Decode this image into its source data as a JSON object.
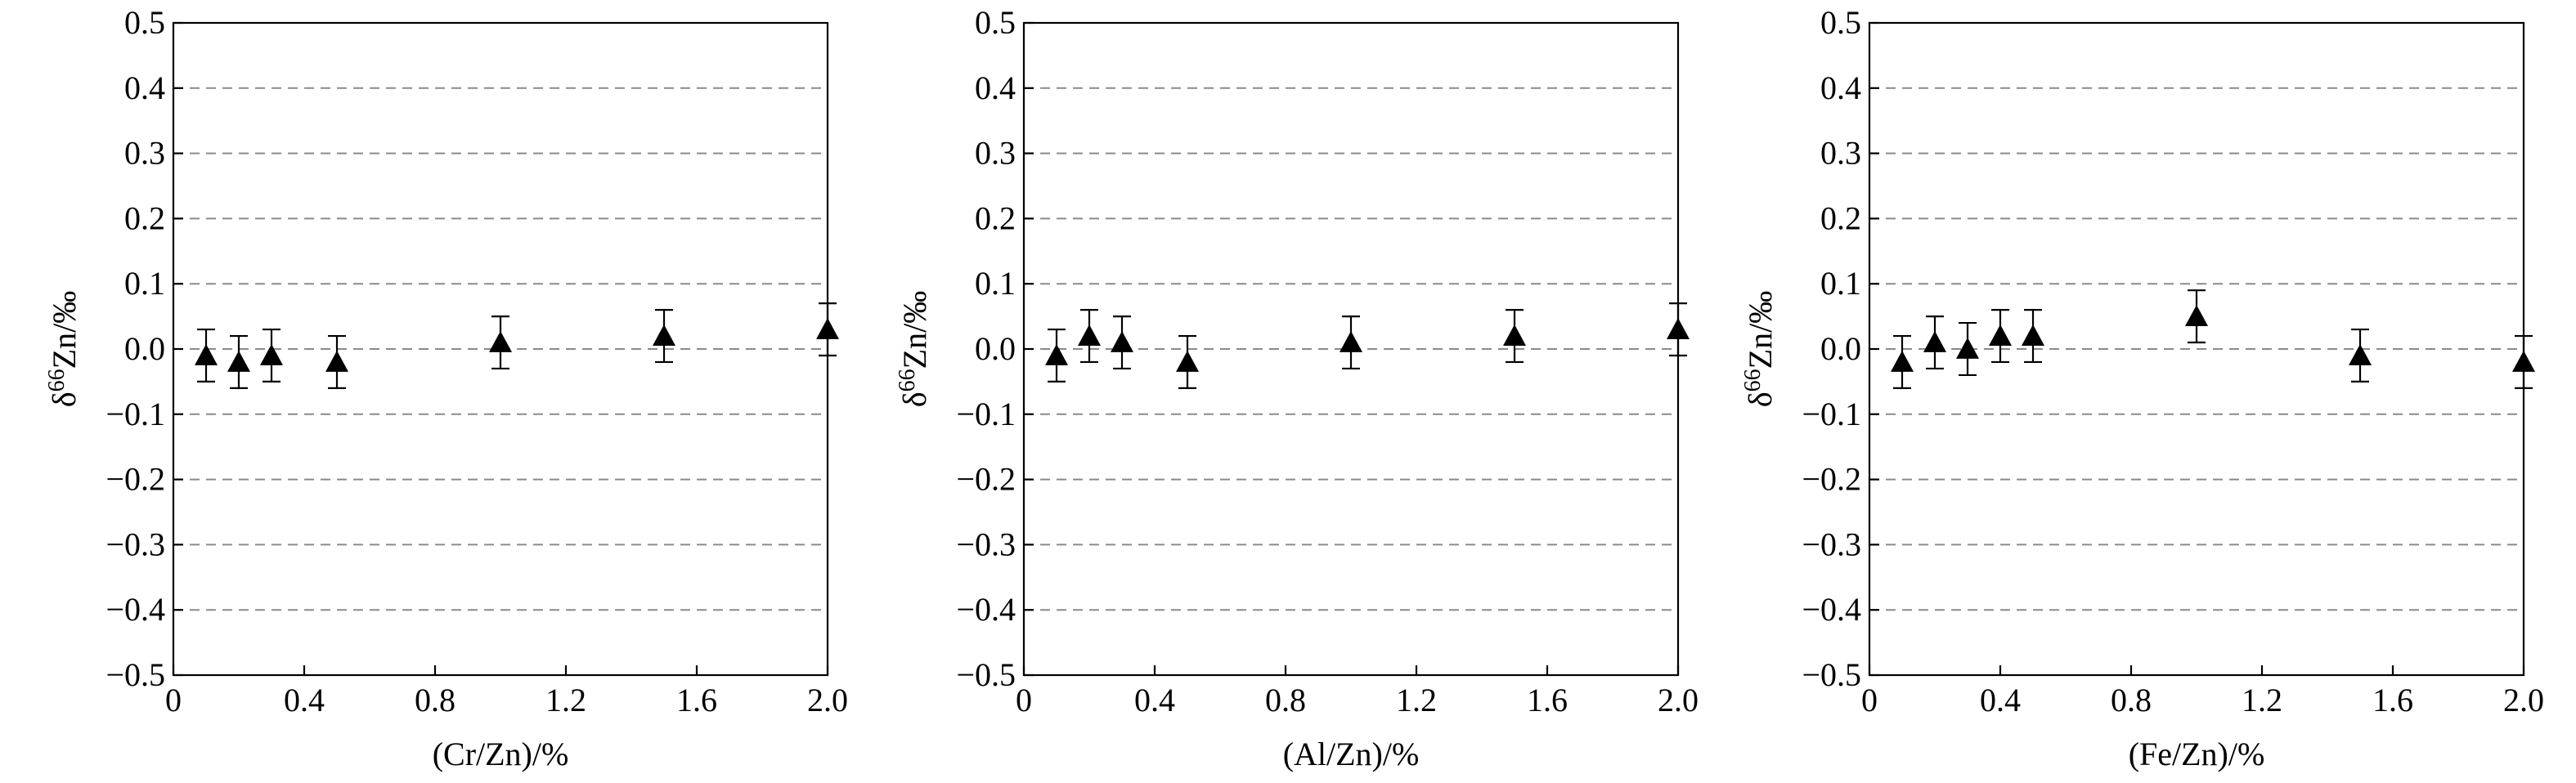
{
  "chart_data": [
    {
      "type": "scatter",
      "xlabel": "(Cr/Zn)/%",
      "ylabel_parts": [
        "δ",
        "66",
        "Zn/‰"
      ],
      "xlim": [
        0,
        2.0
      ],
      "ylim": [
        -0.5,
        0.5
      ],
      "xticks": [
        "0",
        "0.4",
        "0.8",
        "1.2",
        "1.6",
        "2.0"
      ],
      "yticks": [
        "0.5",
        "0.4",
        "0.3",
        "0.2",
        "0.1",
        "0.0",
        "−0.1",
        "−0.2",
        "−0.3",
        "−0.4",
        "−0.5"
      ],
      "grid": "horizontal dashed",
      "marker": "filled triangle",
      "points": [
        {
          "x": 0.1,
          "y": -0.01,
          "err": 0.04
        },
        {
          "x": 0.2,
          "y": -0.02,
          "err": 0.04
        },
        {
          "x": 0.3,
          "y": -0.01,
          "err": 0.04
        },
        {
          "x": 0.5,
          "y": -0.02,
          "err": 0.04
        },
        {
          "x": 1.0,
          "y": 0.01,
          "err": 0.04
        },
        {
          "x": 1.5,
          "y": 0.02,
          "err": 0.04
        },
        {
          "x": 2.0,
          "y": 0.03,
          "err": 0.04
        }
      ]
    },
    {
      "type": "scatter",
      "xlabel": "(Al/Zn)/%",
      "ylabel_parts": [
        "δ",
        "66",
        "Zn/‰"
      ],
      "xlim": [
        0,
        2.0
      ],
      "ylim": [
        -0.5,
        0.5
      ],
      "xticks": [
        "0",
        "0.4",
        "0.8",
        "1.2",
        "1.6",
        "2.0"
      ],
      "yticks": [
        "0.5",
        "0.4",
        "0.3",
        "0.2",
        "0.1",
        "0.0",
        "−0.1",
        "−0.2",
        "−0.3",
        "−0.4",
        "−0.5"
      ],
      "grid": "horizontal dashed",
      "marker": "filled triangle",
      "points": [
        {
          "x": 0.1,
          "y": -0.01,
          "err": 0.04
        },
        {
          "x": 0.2,
          "y": 0.02,
          "err": 0.04
        },
        {
          "x": 0.3,
          "y": 0.01,
          "err": 0.04
        },
        {
          "x": 0.5,
          "y": -0.02,
          "err": 0.04
        },
        {
          "x": 1.0,
          "y": 0.01,
          "err": 0.04
        },
        {
          "x": 1.5,
          "y": 0.02,
          "err": 0.04
        },
        {
          "x": 2.0,
          "y": 0.03,
          "err": 0.04
        }
      ]
    },
    {
      "type": "scatter",
      "xlabel": "(Fe/Zn)/%",
      "ylabel_parts": [
        "δ",
        "66",
        "Zn/‰"
      ],
      "xlim": [
        0,
        2.0
      ],
      "ylim": [
        -0.5,
        0.5
      ],
      "xticks": [
        "0",
        "0.4",
        "0.8",
        "1.2",
        "1.6",
        "2.0"
      ],
      "yticks": [
        "0.5",
        "0.4",
        "0.3",
        "0.2",
        "0.1",
        "0.0",
        "−0.1",
        "−0.2",
        "−0.3",
        "−0.4",
        "−0.5"
      ],
      "grid": "horizontal dashed",
      "marker": "filled triangle",
      "points": [
        {
          "x": 0.1,
          "y": -0.02,
          "err": 0.04
        },
        {
          "x": 0.2,
          "y": 0.01,
          "err": 0.04
        },
        {
          "x": 0.3,
          "y": 0.0,
          "err": 0.04
        },
        {
          "x": 0.4,
          "y": 0.02,
          "err": 0.04
        },
        {
          "x": 0.5,
          "y": 0.02,
          "err": 0.04
        },
        {
          "x": 1.0,
          "y": 0.05,
          "err": 0.04
        },
        {
          "x": 1.5,
          "y": -0.01,
          "err": 0.04
        },
        {
          "x": 2.0,
          "y": -0.02,
          "err": 0.04
        }
      ]
    }
  ]
}
